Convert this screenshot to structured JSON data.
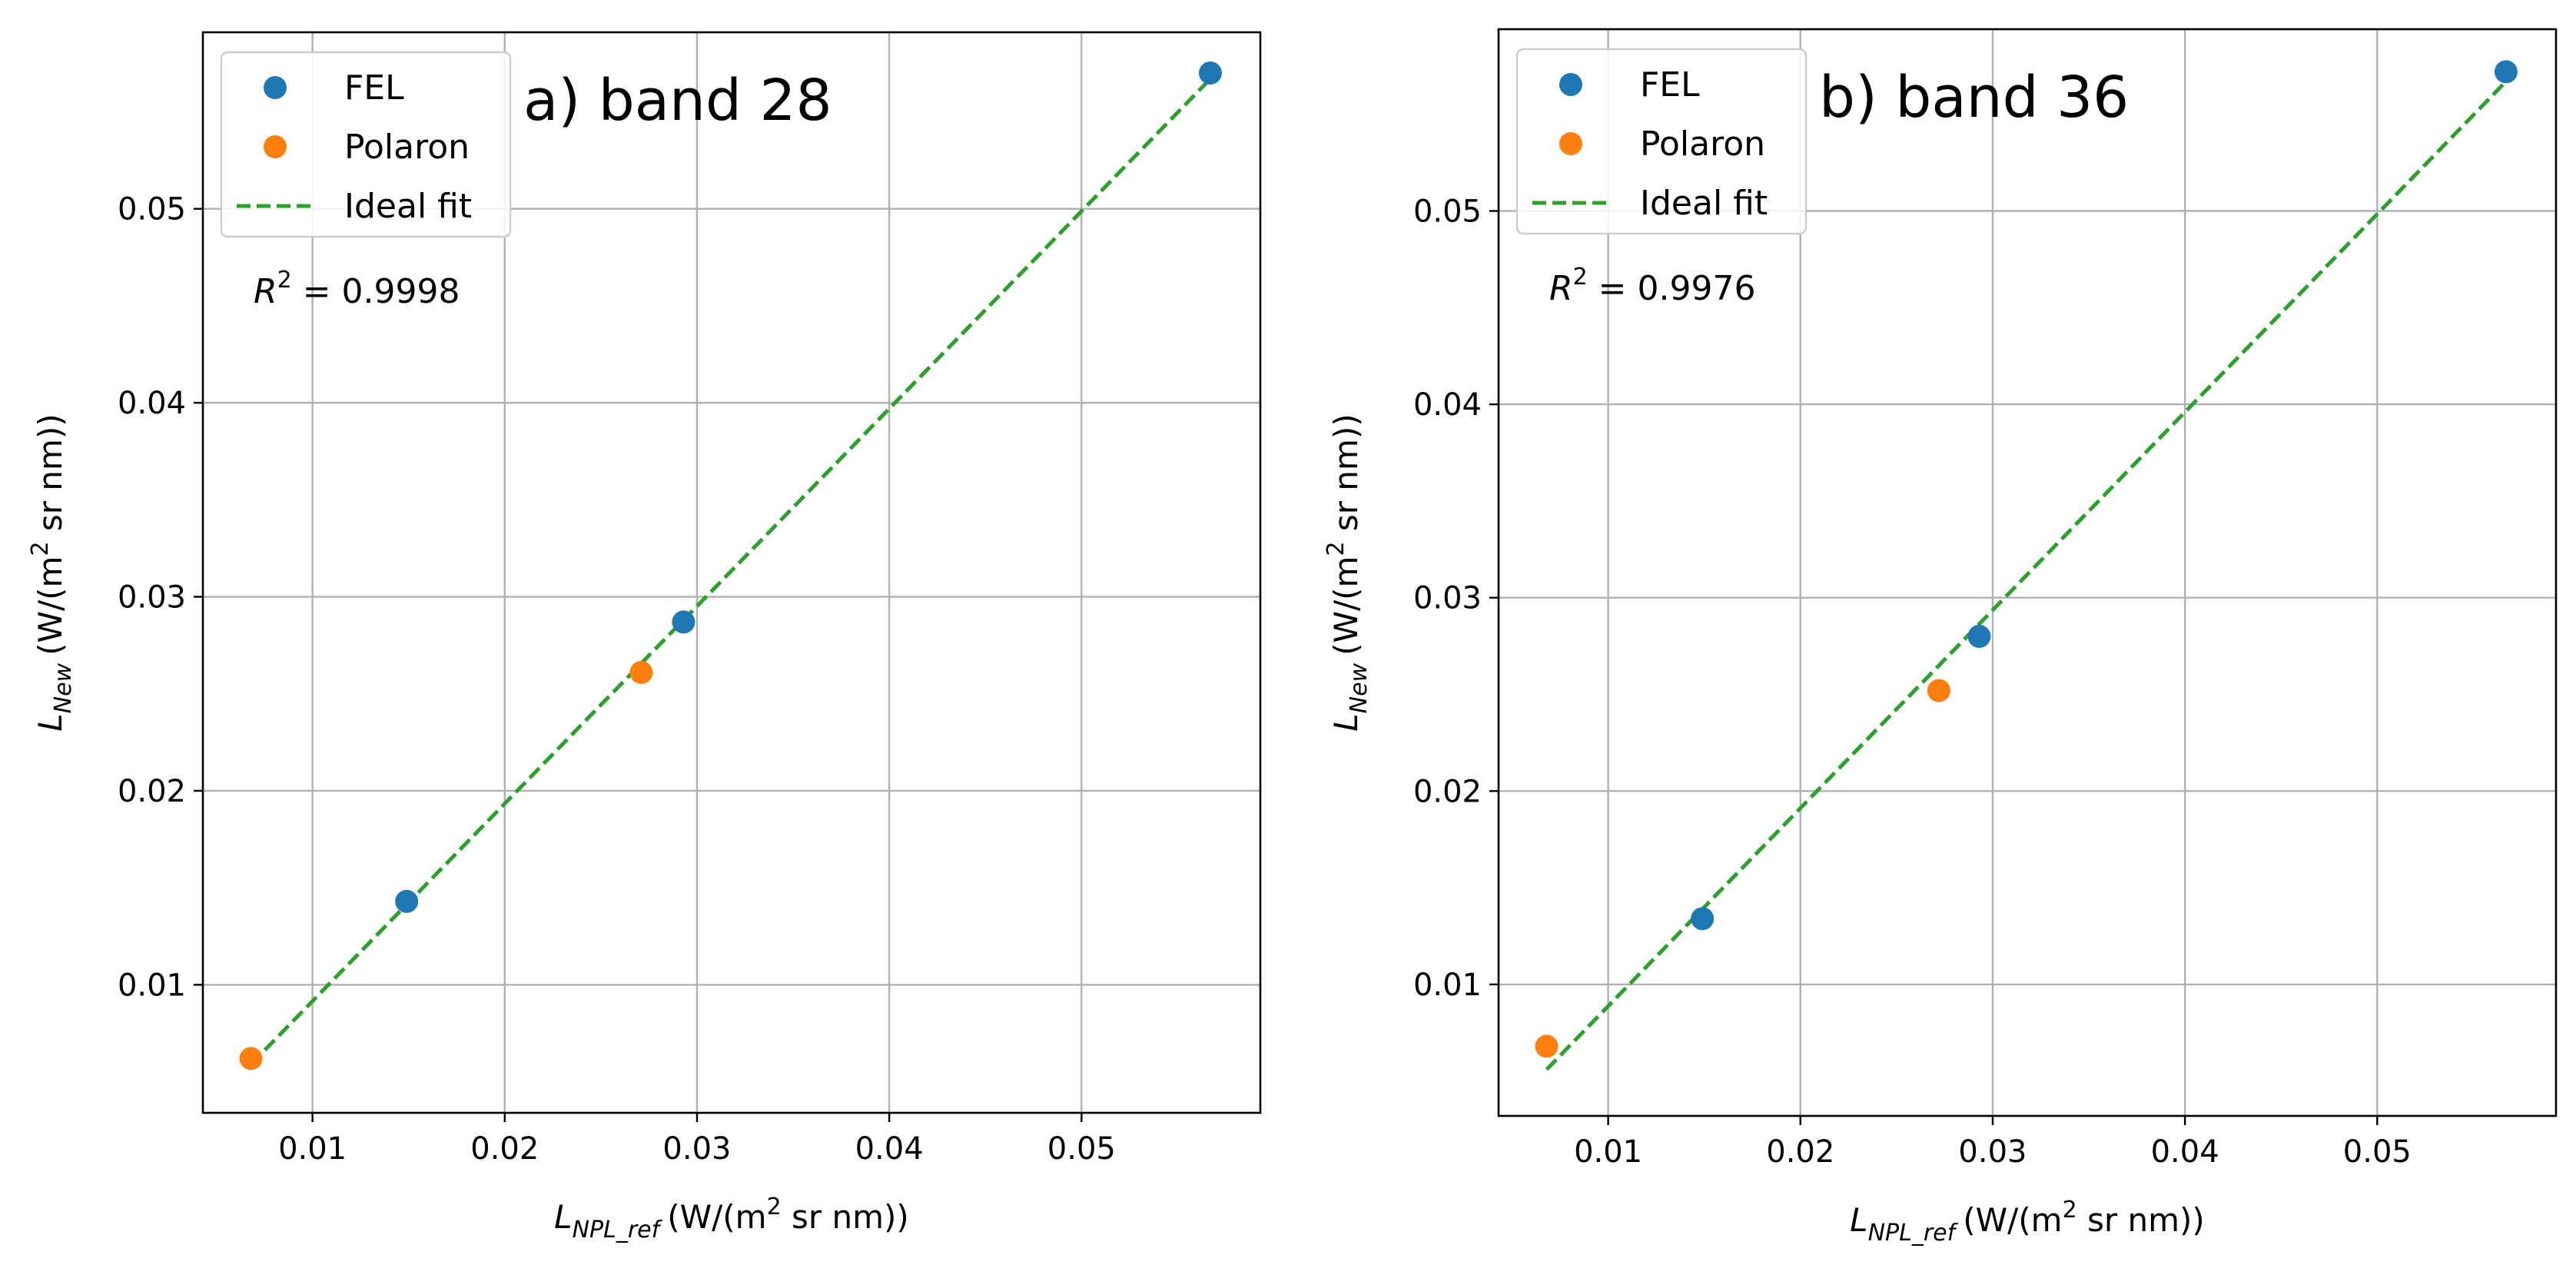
{
  "chart_data": [
    {
      "type": "scatter",
      "title": "a) band 28",
      "xlabel": {
        "symbol": "L",
        "subscript": "NPL_ref",
        "unit_pre": "(W/(m",
        "sup": "2",
        "unit_post": " sr nm))"
      },
      "ylabel": {
        "symbol": "L",
        "subscript": "New",
        "unit_pre": "(W/(m",
        "sup": "2",
        "unit_post": " sr nm))"
      },
      "xlim": [
        0.0043,
        0.0593
      ],
      "ylim": [
        0.0034,
        0.0591
      ],
      "xticks": [
        0.01,
        0.02,
        0.03,
        0.04,
        0.05
      ],
      "xtick_labels": [
        "0.01",
        "0.02",
        "0.03",
        "0.04",
        "0.05"
      ],
      "yticks": [
        0.01,
        0.02,
        0.03,
        0.04,
        0.05
      ],
      "ytick_labels": [
        "0.01",
        "0.02",
        "0.03",
        "0.04",
        "0.05"
      ],
      "grid": true,
      "legend_position": "top-left",
      "series": [
        {
          "name": "FEL",
          "kind": "points",
          "color": "#1f77b4",
          "x": [
            0.0149,
            0.0293,
            0.0567
          ],
          "y": [
            0.0143,
            0.0287,
            0.057
          ]
        },
        {
          "name": "Polaron",
          "kind": "points",
          "color": "#ff7f0e",
          "x": [
            0.0068,
            0.0271
          ],
          "y": [
            0.0062,
            0.0261
          ]
        },
        {
          "name": "Ideal fit",
          "kind": "dashed-line",
          "color": "#2ca02c",
          "x": [
            0.0068,
            0.0567
          ],
          "y": [
            0.0059,
            0.0567
          ]
        }
      ],
      "annotation": {
        "r_label": "R",
        "r_sup": "2",
        "value_text": " = 0.9998"
      }
    },
    {
      "type": "scatter",
      "title": "b) band 36",
      "xlabel": {
        "symbol": "L",
        "subscript": "NPL_ref",
        "unit_pre": "(W/(m",
        "sup": "2",
        "unit_post": " sr nm))"
      },
      "ylabel": {
        "symbol": "L",
        "subscript": "New",
        "unit_pre": "(W/(m",
        "sup": "2",
        "unit_post": " sr nm))"
      },
      "xlim": [
        0.0043,
        0.0593
      ],
      "ylim": [
        0.0032,
        0.0594
      ],
      "xticks": [
        0.01,
        0.02,
        0.03,
        0.04,
        0.05
      ],
      "xtick_labels": [
        "0.01",
        "0.02",
        "0.03",
        "0.04",
        "0.05"
      ],
      "yticks": [
        0.01,
        0.02,
        0.03,
        0.04,
        0.05
      ],
      "ytick_labels": [
        "0.01",
        "0.02",
        "0.03",
        "0.04",
        "0.05"
      ],
      "grid": true,
      "legend_position": "top-left",
      "series": [
        {
          "name": "FEL",
          "kind": "points",
          "color": "#1f77b4",
          "x": [
            0.0149,
            0.0293,
            0.0567
          ],
          "y": [
            0.0134,
            0.028,
            0.0572
          ]
        },
        {
          "name": "Polaron",
          "kind": "points",
          "color": "#ff7f0e",
          "x": [
            0.0068,
            0.0272
          ],
          "y": [
            0.0068,
            0.0252
          ]
        },
        {
          "name": "Ideal fit",
          "kind": "dashed-line",
          "color": "#2ca02c",
          "x": [
            0.0068,
            0.0567
          ],
          "y": [
            0.0056,
            0.0567
          ]
        }
      ],
      "annotation": {
        "r_label": "R",
        "r_sup": "2",
        "value_text": " = 0.9976"
      }
    }
  ]
}
